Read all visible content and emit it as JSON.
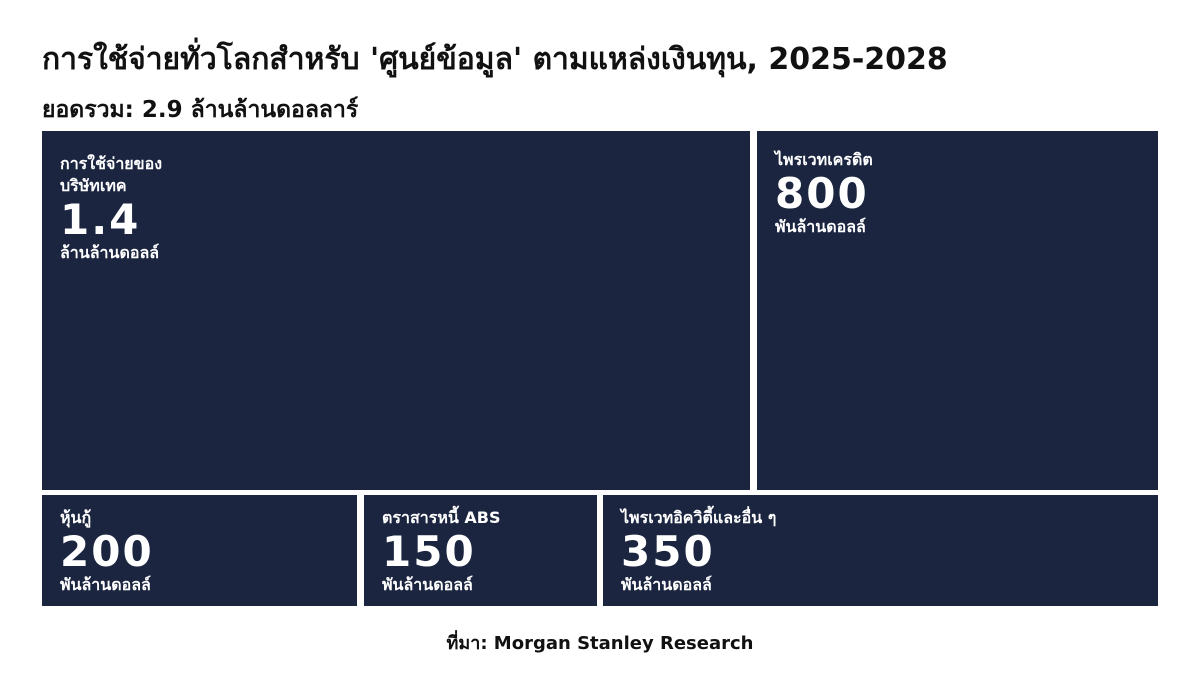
{
  "chart_data": {
    "type": "treemap",
    "title": "การใช้จ่ายทั่วโลกสำหรับ 'ศูนย์ข้อมูล' ตามแหล่งเงินทุน, 2025-2028",
    "subtitle": "ยอดรวม: 2.9 ล้านล้านดอลลาร์",
    "source": "ที่มา: Morgan Stanley Research",
    "color": "#1b2540",
    "items": [
      {
        "name": "การใช้จ่ายของบริษัทเทค",
        "value": 1.4,
        "unit": "ล้านล้านดอลล์"
      },
      {
        "name": "ไพรเวทเครดิต",
        "value": 800,
        "unit": "พันล้านดอลล์"
      },
      {
        "name": "หุ้นกู้",
        "value": 200,
        "unit": "พันล้านดอลล์"
      },
      {
        "name": "ตราสารหนี้ ABS",
        "value": 150,
        "unit": "พันล้านดอลล์"
      },
      {
        "name": "ไพรเวทอิควิตี้และอื่น ๆ",
        "value": 350,
        "unit": "พันล้านดอลล์"
      }
    ]
  }
}
